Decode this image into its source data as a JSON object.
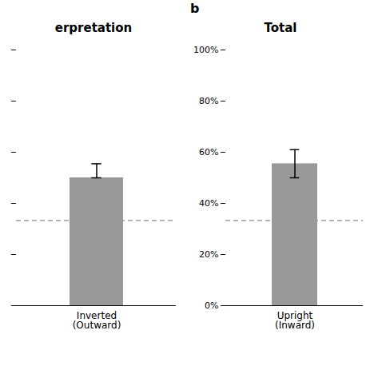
{
  "chart_data": [
    {
      "type": "bar",
      "title": "erpretation",
      "categories": [
        "Inverted\n(Outward)"
      ],
      "values": [
        0.5
      ],
      "error_up": [
        0.055
      ],
      "error_down": [
        0.0
      ],
      "color": "#999999",
      "reference_line": {
        "value": 0.333,
        "color": "#aaaaaa",
        "line_style": "dashed"
      },
      "ylim": [
        0,
        1.0
      ],
      "yticks": [
        0.0,
        0.2,
        0.4,
        0.6,
        0.8,
        1.0
      ],
      "tick_labels": "x"
    },
    {
      "type": "bar",
      "title": "Total",
      "annotations": [
        "b"
      ],
      "categories": [
        "Upright\n(Inward)"
      ],
      "values": [
        0.555
      ],
      "error_up": [
        0.055
      ],
      "error_down": [
        0.055
      ],
      "color": "#999999",
      "reference_line": {
        "value": 0.333,
        "color": "#aaaaaa",
        "line_style": "dashed"
      },
      "ylim": [
        0,
        1.0
      ],
      "yticks": [
        {
          "value": 0.0,
          "label": "0%"
        },
        {
          "value": 0.2,
          "label": "20%"
        },
        {
          "value": 0.4,
          "label": "40%"
        },
        {
          "value": 0.6,
          "label": "60%"
        },
        {
          "value": 0.8,
          "label": "80%"
        },
        {
          "value": 1.0,
          "label": "100%"
        }
      ]
    }
  ]
}
